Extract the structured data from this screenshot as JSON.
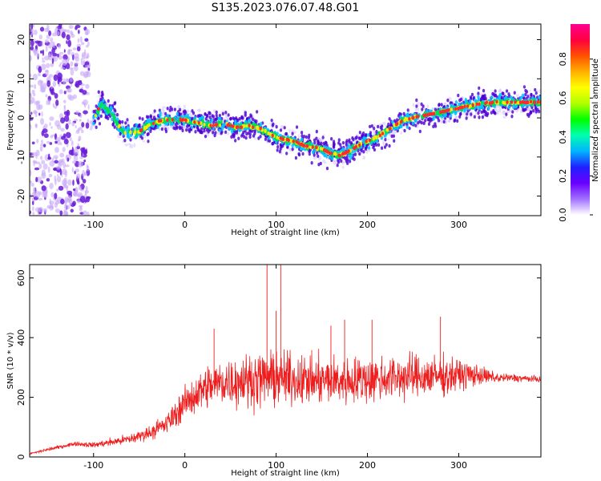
{
  "title": "S135.2023.076.07.48.G01",
  "colors": {
    "snr_line": "#ee1c1c",
    "ridge": [
      "#4b00d2",
      "#00c8ff",
      "#00e050",
      "#ffe800",
      "#ff2a2a"
    ],
    "colormap": [
      "#ffffff",
      "#a070ff",
      "#6a00ff",
      "#2020ff",
      "#00b4ff",
      "#00ffb0",
      "#00ff00",
      "#b0ff00",
      "#ffff00",
      "#ffb000",
      "#ff5000",
      "#ff0040",
      "#ff0090"
    ]
  },
  "chart_data": [
    {
      "type": "heatmap",
      "xlabel": "Height of straight line (km)",
      "ylabel": "Frequency (Hz)",
      "xlim": [
        -170,
        390
      ],
      "ylim": [
        -25,
        24
      ],
      "xticks": [
        "-100",
        "0",
        "100",
        "200",
        "300"
      ],
      "xtick_values": [
        -100,
        0,
        100,
        200,
        300
      ],
      "yticks": [
        "20",
        "10",
        "0",
        "-10",
        "-20"
      ],
      "ytick_values": [
        20,
        10,
        0,
        -10,
        -20
      ],
      "noise_region_x": [
        -170,
        -105
      ],
      "ridge": {
        "x": [
          -100,
          -95,
          -90,
          -85,
          -80,
          -75,
          -70,
          -60,
          -50,
          -40,
          -30,
          -20,
          -10,
          0,
          10,
          20,
          30,
          40,
          50,
          60,
          70,
          80,
          90,
          100,
          110,
          120,
          130,
          140,
          150,
          160,
          170,
          180,
          190,
          200,
          210,
          220,
          230,
          240,
          250,
          260,
          270,
          280,
          290,
          300,
          310,
          320,
          330,
          340,
          350,
          360,
          370,
          380,
          390
        ],
        "y": [
          -1,
          2,
          4,
          2,
          1,
          -1,
          -3,
          -4,
          -3.5,
          -2,
          -1,
          -0.5,
          -0.5,
          -0.5,
          -1,
          -1.5,
          -2,
          -1.5,
          -2,
          -2.5,
          -2,
          -2.5,
          -3.5,
          -5,
          -5.5,
          -6,
          -7,
          -7.5,
          -8,
          -9,
          -9.5,
          -8.5,
          -7,
          -6,
          -5,
          -3.5,
          -2,
          -0.5,
          0,
          0.5,
          1,
          1.5,
          2,
          2.5,
          3,
          3.5,
          3.8,
          4,
          4,
          4,
          4,
          4,
          4
        ]
      },
      "colorbar": {
        "label": "Normalized spectral amplitude",
        "ticks": [
          "0.0",
          "0.2",
          "0.4",
          "0.6",
          "0.8"
        ],
        "tick_values": [
          0.0,
          0.2,
          0.4,
          0.6,
          0.8
        ],
        "range": [
          0,
          0.98
        ]
      }
    },
    {
      "type": "line",
      "xlabel": "Height of straight line (km)",
      "ylabel": "SNR (10 * v/v)",
      "xlim": [
        -170,
        390
      ],
      "ylim": [
        0,
        645
      ],
      "xticks": [
        "-100",
        "0",
        "100",
        "200",
        "300"
      ],
      "xtick_values": [
        -100,
        0,
        100,
        200,
        300
      ],
      "yticks": [
        "0",
        "200",
        "400",
        "600"
      ],
      "ytick_values": [
        0,
        200,
        400,
        600
      ],
      "envelope": {
        "x": [
          -170,
          -150,
          -120,
          -100,
          -80,
          -60,
          -40,
          -20,
          0,
          20,
          40,
          60,
          80,
          100,
          120,
          140,
          160,
          180,
          200,
          220,
          240,
          260,
          280,
          300,
          320,
          340,
          360,
          390
        ],
        "mean": [
          10,
          25,
          45,
          40,
          50,
          60,
          80,
          110,
          180,
          230,
          250,
          255,
          260,
          265,
          260,
          255,
          255,
          255,
          260,
          265,
          270,
          270,
          270,
          275,
          275,
          265,
          265,
          260
        ],
        "amp": [
          4,
          6,
          8,
          10,
          15,
          20,
          25,
          40,
          60,
          80,
          90,
          95,
          100,
          100,
          95,
          90,
          90,
          90,
          90,
          85,
          85,
          80,
          75,
          60,
          40,
          20,
          15,
          12
        ]
      },
      "peaks": [
        {
          "x": 90,
          "y": 645
        },
        {
          "x": 105,
          "y": 645
        },
        {
          "x": 100,
          "y": 490
        },
        {
          "x": 175,
          "y": 460
        },
        {
          "x": 205,
          "y": 460
        },
        {
          "x": 280,
          "y": 470
        },
        {
          "x": 32,
          "y": 430
        },
        {
          "x": 160,
          "y": 440
        }
      ]
    }
  ]
}
